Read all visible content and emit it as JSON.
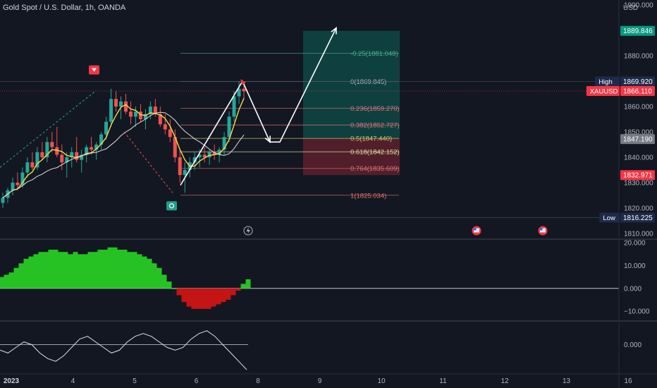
{
  "header": {
    "symbol_title": "Gold Spot / U.S. Dollar, 1h, OANDA",
    "currency": "USD"
  },
  "chart_data": [
    {
      "type": "candlestick",
      "name": "price",
      "y_ticks": [
        1810,
        1820,
        1830,
        1840,
        1850,
        1860,
        1870,
        1880,
        1890,
        1900
      ],
      "y_tick_labels": [
        "1810.000",
        "1820.000",
        "1830.000",
        "1840.000",
        "1850.000",
        "1860.000",
        "1870.000",
        "1880.000",
        "1890.000",
        "1900.000"
      ],
      "ylim": [
        1808,
        1902
      ],
      "x_ticks": [
        {
          "label": "2023",
          "day": 3
        },
        {
          "label": "4",
          "day": 4
        },
        {
          "label": "5",
          "day": 5
        },
        {
          "label": "6",
          "day": 6
        },
        {
          "label": "8",
          "day": 7
        },
        {
          "label": "9",
          "day": 8
        },
        {
          "label": "10",
          "day": 9
        },
        {
          "label": "11",
          "day": 10
        },
        {
          "label": "12",
          "day": 11
        },
        {
          "label": "13",
          "day": 12
        },
        {
          "label": "16",
          "day": 13
        }
      ],
      "grid": false,
      "fib_levels": [
        {
          "label": "-0.25(1881.048)",
          "price": 1881.048,
          "color": "#4caf8a"
        },
        {
          "label": "0(1869.845)",
          "price": 1869.845,
          "color": "#b2b5be"
        },
        {
          "label": "0.236(1859.270)",
          "price": 1859.27,
          "color": "#e57373"
        },
        {
          "label": "0.382(1852.727)",
          "price": 1852.727,
          "color": "#e57373"
        },
        {
          "label": "0.5(1847.440)",
          "price": 1847.44,
          "color": "#d6c36a"
        },
        {
          "label": "0.618(1842.152)",
          "price": 1842.152,
          "color": "#e0e0a0"
        },
        {
          "label": "0.764(1835.609)",
          "price": 1835.609,
          "color": "#e57373"
        },
        {
          "label": "1(1825.034)",
          "price": 1825.034,
          "color": "#e57373"
        }
      ],
      "price_labels": [
        {
          "text": "1900.000",
          "price": 1900,
          "type": "plain"
        },
        {
          "text": "1889.846",
          "price": 1889.846,
          "type": "target",
          "color": "#089981"
        },
        {
          "text": "1869.920",
          "price": 1869.92,
          "type": "tagged",
          "tag": "High",
          "color": "#1e2a4a"
        },
        {
          "text": "1866.110",
          "price": 1866.11,
          "type": "tagged",
          "tag": "XAUUSD",
          "color": "#f23645"
        },
        {
          "text": "1847.190",
          "price": 1847.19,
          "type": "mid",
          "color": "#787b86"
        },
        {
          "text": "1832.971",
          "price": 1832.971,
          "type": "stop",
          "color": "#f23645"
        },
        {
          "text": "1816.225",
          "price": 1816.225,
          "type": "tagged",
          "tag": "Low",
          "color": "#1e2a4a"
        }
      ],
      "position": {
        "entry": 1847.44,
        "target": 1889.846,
        "stop": 1832.971
      },
      "candles": [
        [
          1822,
          1826,
          1820,
          1824
        ],
        [
          1824,
          1828,
          1822,
          1827
        ],
        [
          1827,
          1832,
          1825,
          1830
        ],
        [
          1830,
          1834,
          1827,
          1829
        ],
        [
          1829,
          1836,
          1828,
          1834
        ],
        [
          1834,
          1840,
          1832,
          1838
        ],
        [
          1838,
          1842,
          1835,
          1836
        ],
        [
          1836,
          1844,
          1835,
          1842
        ],
        [
          1842,
          1846,
          1839,
          1840
        ],
        [
          1840,
          1848,
          1838,
          1846
        ],
        [
          1846,
          1850,
          1842,
          1844
        ],
        [
          1844,
          1852,
          1840,
          1841
        ],
        [
          1841,
          1845,
          1835,
          1838
        ],
        [
          1838,
          1842,
          1832,
          1840
        ],
        [
          1840,
          1844,
          1836,
          1842
        ],
        [
          1842,
          1848,
          1838,
          1839
        ],
        [
          1839,
          1843,
          1834,
          1841
        ],
        [
          1841,
          1845,
          1838,
          1844
        ],
        [
          1844,
          1848,
          1841,
          1843
        ],
        [
          1843,
          1846,
          1839,
          1845
        ],
        [
          1845,
          1850,
          1843,
          1849
        ],
        [
          1849,
          1856,
          1847,
          1854
        ],
        [
          1854,
          1867,
          1852,
          1863
        ],
        [
          1863,
          1866,
          1858,
          1860
        ],
        [
          1860,
          1864,
          1855,
          1862
        ],
        [
          1862,
          1865,
          1857,
          1858
        ],
        [
          1858,
          1862,
          1853,
          1856
        ],
        [
          1856,
          1860,
          1852,
          1858
        ],
        [
          1858,
          1861,
          1854,
          1855
        ],
        [
          1855,
          1859,
          1851,
          1857
        ],
        [
          1857,
          1862,
          1855,
          1860
        ],
        [
          1860,
          1863,
          1856,
          1857
        ],
        [
          1857,
          1860,
          1852,
          1853
        ],
        [
          1853,
          1857,
          1849,
          1851
        ],
        [
          1851,
          1855,
          1846,
          1848
        ],
        [
          1848,
          1851,
          1838,
          1840
        ],
        [
          1840,
          1843,
          1830,
          1833
        ],
        [
          1833,
          1838,
          1826,
          1835
        ],
        [
          1835,
          1840,
          1832,
          1838
        ],
        [
          1838,
          1842,
          1835,
          1840
        ],
        [
          1840,
          1843,
          1836,
          1841
        ],
        [
          1841,
          1844,
          1838,
          1840
        ],
        [
          1840,
          1843,
          1837,
          1842
        ],
        [
          1842,
          1845,
          1839,
          1841
        ],
        [
          1841,
          1844,
          1838,
          1843
        ],
        [
          1843,
          1850,
          1841,
          1848
        ],
        [
          1848,
          1858,
          1846,
          1856
        ],
        [
          1856,
          1866,
          1854,
          1864
        ],
        [
          1864,
          1870,
          1861,
          1867
        ],
        [
          1867,
          1870,
          1863,
          1866
        ]
      ]
    },
    {
      "type": "bar",
      "name": "histogram-oscillator",
      "y_ticks": [
        20,
        10,
        0,
        -10
      ],
      "y_tick_labels": [
        "20.000",
        "10.000",
        "0.000",
        "−10.000"
      ],
      "ylim": [
        -14,
        21
      ],
      "values": [
        5,
        6,
        7,
        9,
        11,
        13,
        14,
        15,
        16,
        16,
        17,
        17,
        16,
        16,
        15,
        16,
        15,
        15,
        16,
        16,
        17,
        17,
        18,
        18,
        17,
        17,
        16,
        16,
        15,
        14,
        13,
        11,
        9,
        6,
        3,
        0,
        -3,
        -6,
        -8,
        -9,
        -9,
        -9,
        -9,
        -8,
        -7,
        -6,
        -5,
        -3,
        -1,
        2,
        4
      ],
      "positive_color": "#26c224",
      "negative_color": "#c41414",
      "grid": false
    },
    {
      "type": "line",
      "name": "line-oscillator",
      "y_ticks": [
        0
      ],
      "y_tick_labels": [
        "0.000"
      ],
      "ylim": [
        -10,
        8
      ],
      "values": [
        -2,
        -3,
        -1,
        1,
        0,
        -3,
        -5,
        -6,
        -4,
        -1,
        2,
        3,
        1,
        -1,
        -3,
        -2,
        1,
        3,
        4,
        3,
        1,
        -1,
        -2,
        -1,
        2,
        4,
        5,
        3,
        0,
        -3,
        -6,
        -9
      ],
      "baseline": 0,
      "grid": false
    }
  ]
}
